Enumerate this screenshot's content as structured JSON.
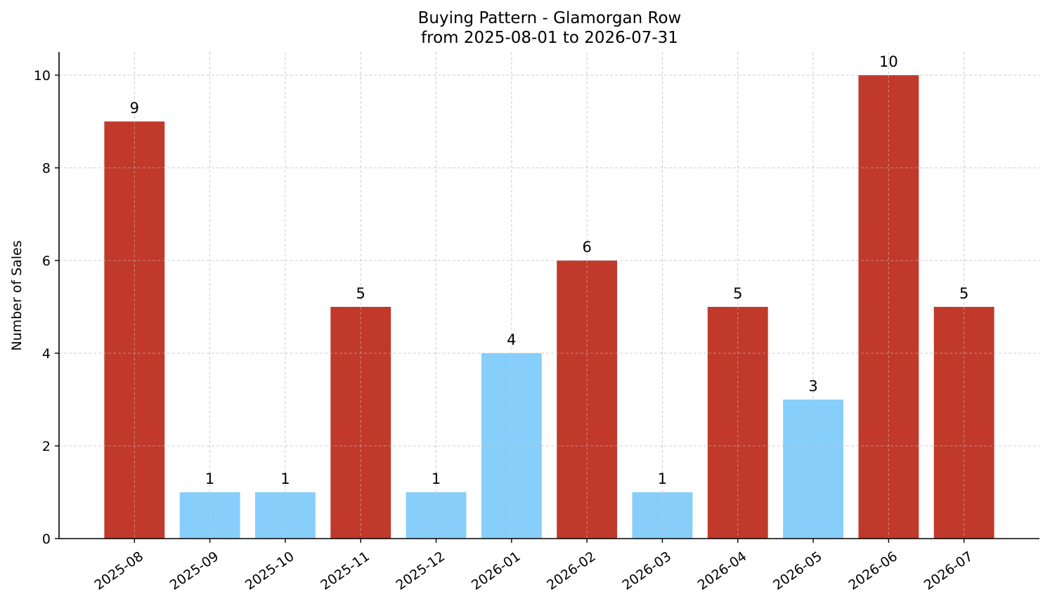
{
  "chart_data": {
    "type": "bar",
    "title": "Buying Pattern - Glamorgan Row",
    "subtitle": "from 2025-08-01 to 2026-07-31",
    "xlabel": "",
    "ylabel": "Number of Sales",
    "categories": [
      "2025-08",
      "2025-09",
      "2025-10",
      "2025-11",
      "2025-12",
      "2026-01",
      "2026-02",
      "2026-03",
      "2026-04",
      "2026-05",
      "2026-06",
      "2026-07"
    ],
    "values": [
      9,
      1,
      1,
      5,
      1,
      4,
      6,
      1,
      5,
      3,
      10,
      5
    ],
    "bar_colors": [
      "#c0392b",
      "#87cefa",
      "#87cefa",
      "#c0392b",
      "#87cefa",
      "#87cefa",
      "#c0392b",
      "#87cefa",
      "#c0392b",
      "#87cefa",
      "#c0392b",
      "#c0392b"
    ],
    "ylim": [
      0,
      10.5
    ],
    "yticks": [
      0,
      2,
      4,
      6,
      8,
      10
    ],
    "grid": true,
    "legend": "none"
  }
}
